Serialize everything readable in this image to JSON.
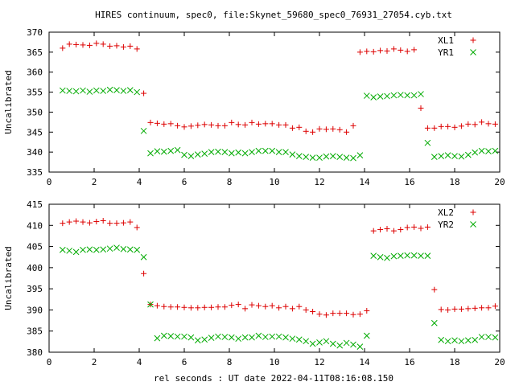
{
  "title": "HIRES continuum, spec0, file:Skynet_59680_spec0_76931_27054.cyb.txt",
  "xlabel": "rel seconds : UT date 2022-04-11T08:16:08.150",
  "chart_data": [
    {
      "type": "scatter",
      "ylabel": "Uncalibrated",
      "xlim": [
        0,
        20
      ],
      "ylim": [
        335,
        370
      ],
      "x_ticks": [
        0,
        2,
        4,
        6,
        8,
        10,
        12,
        14,
        16,
        18,
        20
      ],
      "y_ticks": [
        335,
        340,
        345,
        350,
        355,
        360,
        365,
        370
      ],
      "legend_position": "top-right",
      "series": [
        {
          "name": "XL1",
          "color": "#dd0000",
          "marker": "plus",
          "x": [
            0.6,
            0.9,
            1.2,
            1.5,
            1.8,
            2.1,
            2.4,
            2.7,
            3.0,
            3.3,
            3.6,
            3.9,
            4.2,
            4.5,
            4.8,
            5.1,
            5.4,
            5.7,
            6.0,
            6.3,
            6.6,
            6.9,
            7.2,
            7.5,
            7.8,
            8.1,
            8.4,
            8.7,
            9.0,
            9.3,
            9.6,
            9.9,
            10.2,
            10.5,
            10.8,
            11.1,
            11.4,
            11.7,
            12.0,
            12.3,
            12.6,
            12.9,
            13.2,
            13.5,
            13.8,
            14.1,
            14.4,
            14.7,
            15.0,
            15.3,
            15.6,
            15.9,
            16.2,
            16.5,
            16.8,
            17.1,
            17.4,
            17.7,
            18.0,
            18.3,
            18.6,
            18.9,
            19.2,
            19.5,
            19.8
          ],
          "y": [
            366.0,
            367.0,
            366.9,
            366.8,
            366.7,
            367.2,
            367.0,
            366.5,
            366.6,
            366.3,
            366.5,
            365.8,
            354.7,
            347.4,
            347.2,
            347.0,
            347.1,
            346.6,
            346.3,
            346.5,
            346.7,
            346.9,
            346.8,
            346.6,
            346.6,
            347.4,
            346.9,
            346.8,
            347.4,
            347.0,
            347.1,
            347.1,
            346.8,
            346.8,
            346.0,
            346.2,
            345.2,
            345.0,
            345.8,
            345.7,
            345.8,
            345.6,
            345.0,
            346.6,
            365.0,
            365.2,
            365.1,
            365.4,
            365.3,
            365.8,
            365.5,
            365.2,
            365.6,
            351.0,
            346.0,
            346.0,
            346.4,
            346.4,
            346.2,
            346.5,
            347.0,
            346.9,
            347.5,
            347.1,
            347.0
          ]
        },
        {
          "name": "YR1",
          "color": "#00aa00",
          "marker": "cross",
          "x": [
            0.6,
            0.9,
            1.2,
            1.5,
            1.8,
            2.1,
            2.4,
            2.7,
            3.0,
            3.3,
            3.6,
            3.9,
            4.2,
            4.5,
            4.8,
            5.1,
            5.4,
            5.7,
            6.0,
            6.3,
            6.6,
            6.9,
            7.2,
            7.5,
            7.8,
            8.1,
            8.4,
            8.7,
            9.0,
            9.3,
            9.6,
            9.9,
            10.2,
            10.5,
            10.8,
            11.1,
            11.4,
            11.7,
            12.0,
            12.3,
            12.6,
            12.9,
            13.2,
            13.5,
            13.8,
            14.1,
            14.4,
            14.7,
            15.0,
            15.3,
            15.6,
            15.9,
            16.2,
            16.5,
            16.8,
            17.1,
            17.4,
            17.7,
            18.0,
            18.3,
            18.6,
            18.9,
            19.2,
            19.5,
            19.8
          ],
          "y": [
            355.4,
            355.3,
            355.2,
            355.4,
            355.1,
            355.4,
            355.3,
            355.6,
            355.5,
            355.3,
            355.5,
            355.0,
            345.3,
            339.7,
            340.2,
            340.1,
            340.3,
            340.5,
            339.3,
            339.0,
            339.4,
            339.6,
            340.0,
            340.1,
            340.0,
            339.7,
            339.9,
            339.7,
            340.0,
            340.3,
            340.3,
            340.3,
            340.0,
            340.0,
            339.4,
            339.0,
            338.8,
            338.6,
            338.6,
            338.9,
            339.0,
            338.8,
            338.6,
            338.5,
            339.2,
            354.1,
            353.7,
            353.9,
            354.0,
            354.2,
            354.3,
            354.2,
            354.2,
            354.5,
            342.3,
            338.8,
            339.0,
            339.2,
            339.0,
            338.9,
            339.3,
            339.9,
            340.3,
            340.2,
            340.3
          ]
        }
      ]
    },
    {
      "type": "scatter",
      "ylabel": "Uncalibrated",
      "xlim": [
        0,
        20
      ],
      "ylim": [
        380,
        415
      ],
      "x_ticks": [
        0,
        2,
        4,
        6,
        8,
        10,
        12,
        14,
        16,
        18,
        20
      ],
      "y_ticks": [
        380,
        385,
        390,
        395,
        400,
        405,
        410,
        415
      ],
      "legend_position": "top-right",
      "series": [
        {
          "name": "XL2",
          "color": "#dd0000",
          "marker": "plus",
          "x": [
            0.6,
            0.9,
            1.2,
            1.5,
            1.8,
            2.1,
            2.4,
            2.7,
            3.0,
            3.3,
            3.6,
            3.9,
            4.2,
            4.5,
            4.8,
            5.1,
            5.4,
            5.7,
            6.0,
            6.3,
            6.6,
            6.9,
            7.2,
            7.5,
            7.8,
            8.1,
            8.4,
            8.7,
            9.0,
            9.3,
            9.6,
            9.9,
            10.2,
            10.5,
            10.8,
            11.1,
            11.4,
            11.7,
            12.0,
            12.3,
            12.6,
            12.9,
            13.2,
            13.5,
            13.8,
            14.1,
            14.4,
            14.7,
            15.0,
            15.3,
            15.6,
            15.9,
            16.2,
            16.5,
            16.8,
            17.1,
            17.4,
            17.7,
            18.0,
            18.3,
            18.6,
            18.9,
            19.2,
            19.5,
            19.8
          ],
          "y": [
            410.5,
            410.8,
            411.0,
            410.8,
            410.6,
            410.9,
            411.1,
            410.5,
            410.5,
            410.6,
            410.8,
            409.5,
            398.6,
            391.3,
            391.0,
            390.8,
            390.7,
            390.7,
            390.6,
            390.5,
            390.5,
            390.6,
            390.6,
            390.7,
            390.7,
            391.1,
            391.3,
            390.3,
            391.2,
            391.0,
            390.8,
            391.0,
            390.5,
            390.8,
            390.3,
            390.8,
            390.0,
            389.6,
            389.0,
            388.8,
            389.2,
            389.2,
            389.2,
            388.9,
            389.0,
            389.8,
            408.7,
            409.0,
            409.2,
            408.7,
            409.0,
            409.5,
            409.6,
            409.3,
            409.6,
            394.8,
            390.1,
            390.0,
            390.2,
            390.2,
            390.3,
            390.4,
            390.5,
            390.5,
            390.9
          ]
        },
        {
          "name": "YR2",
          "color": "#00aa00",
          "marker": "cross",
          "x": [
            0.6,
            0.9,
            1.2,
            1.5,
            1.8,
            2.1,
            2.4,
            2.7,
            3.0,
            3.3,
            3.6,
            3.9,
            4.2,
            4.5,
            4.8,
            5.1,
            5.4,
            5.7,
            6.0,
            6.3,
            6.6,
            6.9,
            7.2,
            7.5,
            7.8,
            8.1,
            8.4,
            8.7,
            9.0,
            9.3,
            9.6,
            9.9,
            10.2,
            10.5,
            10.8,
            11.1,
            11.4,
            11.7,
            12.0,
            12.3,
            12.6,
            12.9,
            13.2,
            13.5,
            13.8,
            14.1,
            14.4,
            14.7,
            15.0,
            15.3,
            15.6,
            15.9,
            16.2,
            16.5,
            16.8,
            17.1,
            17.4,
            17.7,
            18.0,
            18.3,
            18.6,
            18.9,
            19.2,
            19.5,
            19.8
          ],
          "y": [
            404.2,
            404.0,
            403.7,
            404.2,
            404.3,
            404.2,
            404.3,
            404.5,
            404.7,
            404.4,
            404.3,
            404.2,
            402.5,
            391.3,
            383.3,
            383.9,
            383.8,
            383.7,
            383.7,
            383.5,
            382.8,
            383.0,
            383.4,
            383.7,
            383.6,
            383.5,
            383.2,
            383.5,
            383.5,
            383.9,
            383.6,
            383.7,
            383.7,
            383.5,
            383.2,
            383.0,
            382.6,
            382.0,
            382.3,
            382.6,
            382.0,
            381.6,
            382.2,
            381.8,
            381.3,
            383.9,
            402.8,
            402.5,
            402.3,
            402.7,
            402.8,
            402.9,
            402.9,
            402.8,
            402.8,
            386.9,
            382.9,
            382.6,
            382.8,
            382.6,
            382.8,
            382.9,
            383.6,
            383.6,
            383.5
          ]
        }
      ]
    }
  ]
}
